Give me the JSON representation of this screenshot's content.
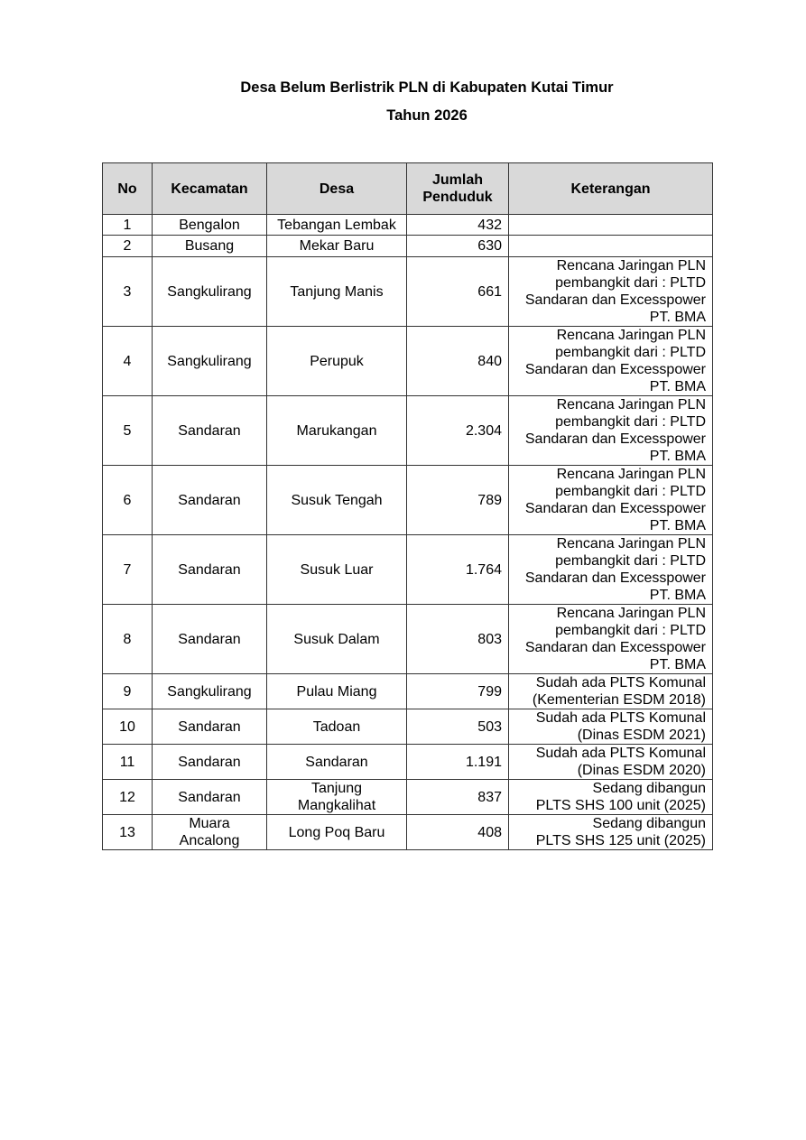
{
  "title_line1": "Desa Belum Berlistrik PLN di Kabupaten Kutai Timur",
  "title_line2": "Tahun 2026",
  "columns": [
    "No",
    "Kecamatan",
    "Desa",
    "Jumlah Penduduk",
    "Keterangan"
  ],
  "header_bg": "#d9d9d9",
  "rows": [
    {
      "no": "1",
      "kecamatan": "Bengalon",
      "desa": "Tebangan Lembak",
      "jumlah": "432",
      "keterangan": ""
    },
    {
      "no": "2",
      "kecamatan": "Busang",
      "desa": "Mekar Baru",
      "jumlah": "630",
      "keterangan": ""
    },
    {
      "no": "3",
      "kecamatan": "Sangkulirang",
      "desa": "Tanjung Manis",
      "jumlah": "661",
      "keterangan": "Rencana Jaringan PLN\npembangkit dari : PLTD\nSandaran dan Excesspower\nPT. BMA"
    },
    {
      "no": "4",
      "kecamatan": "Sangkulirang",
      "desa": "Perupuk",
      "jumlah": "840",
      "keterangan": "Rencana Jaringan PLN\npembangkit dari : PLTD\nSandaran dan Excesspower\nPT. BMA"
    },
    {
      "no": "5",
      "kecamatan": "Sandaran",
      "desa": "Marukangan",
      "jumlah": "2.304",
      "keterangan": "Rencana Jaringan PLN\npembangkit dari : PLTD\nSandaran dan Excesspower\nPT. BMA"
    },
    {
      "no": "6",
      "kecamatan": "Sandaran",
      "desa": "Susuk Tengah",
      "jumlah": "789",
      "keterangan": "Rencana Jaringan PLN\npembangkit dari : PLTD\nSandaran dan Excesspower\nPT. BMA"
    },
    {
      "no": "7",
      "kecamatan": "Sandaran",
      "desa": "Susuk Luar",
      "jumlah": "1.764",
      "keterangan": "Rencana Jaringan PLN\npembangkit dari : PLTD\nSandaran dan Excesspower\nPT. BMA"
    },
    {
      "no": "8",
      "kecamatan": "Sandaran",
      "desa": "Susuk Dalam",
      "jumlah": "803",
      "keterangan": "Rencana Jaringan PLN\npembangkit dari : PLTD\nSandaran dan Excesspower\nPT. BMA"
    },
    {
      "no": "9",
      "kecamatan": "Sangkulirang",
      "desa": "Pulau Miang",
      "jumlah": "799",
      "keterangan": "Sudah ada PLTS Komunal\n(Kementerian ESDM 2018)"
    },
    {
      "no": "10",
      "kecamatan": "Sandaran",
      "desa": "Tadoan",
      "jumlah": "503",
      "keterangan": "Sudah ada PLTS Komunal\n(Dinas ESDM 2021)"
    },
    {
      "no": "11",
      "kecamatan": "Sandaran",
      "desa": "Sandaran",
      "jumlah": "1.191",
      "keterangan": "Sudah ada PLTS Komunal\n(Dinas ESDM 2020)"
    },
    {
      "no": "12",
      "kecamatan": "Sandaran",
      "desa": "Tanjung Mangkalihat",
      "jumlah": "837",
      "keterangan": "Sedang dibangun\nPLTS SHS 100 unit (2025)"
    },
    {
      "no": "13",
      "kecamatan": "Muara Ancalong",
      "desa": "Long Poq Baru",
      "jumlah": "408",
      "keterangan": "Sedang dibangun\nPLTS SHS 125 unit (2025)"
    }
  ]
}
